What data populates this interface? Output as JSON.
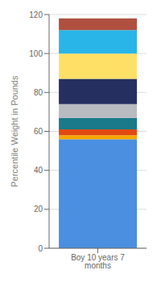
{
  "chart_data": {
    "type": "bar",
    "stacked": true,
    "categories": [
      "Boy 10 years 7 months"
    ],
    "series": [
      {
        "color": "#4A8FE0",
        "values": [
          56
        ]
      },
      {
        "color": "#F5A800",
        "values": [
          2
        ]
      },
      {
        "color": "#E04A10",
        "values": [
          3
        ]
      },
      {
        "color": "#1A7A8A",
        "values": [
          6
        ]
      },
      {
        "color": "#B8BBC0",
        "values": [
          7
        ]
      },
      {
        "color": "#253060",
        "values": [
          13
        ]
      },
      {
        "color": "#FFE066",
        "values": [
          13
        ]
      },
      {
        "color": "#29B5E8",
        "values": [
          12
        ]
      },
      {
        "color": "#B05040",
        "values": [
          6
        ]
      }
    ],
    "ylabel": "Percentile Weight in Pounds",
    "ylim": [
      0,
      120
    ],
    "yticks": [
      0,
      20,
      40,
      60,
      80,
      100,
      120
    ],
    "grid": true
  }
}
